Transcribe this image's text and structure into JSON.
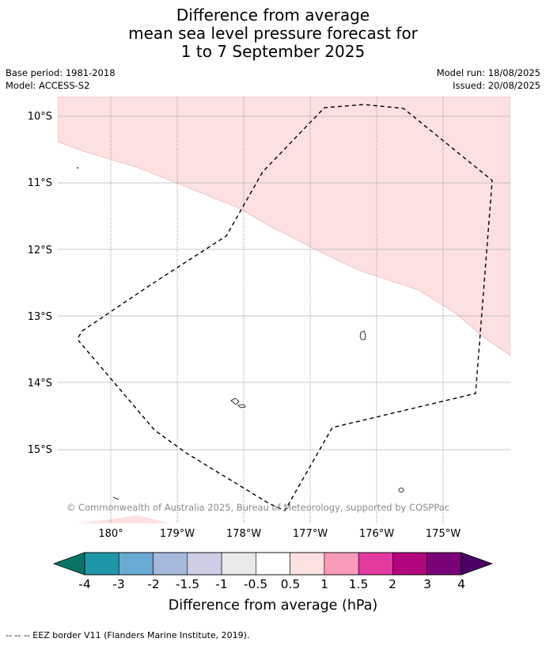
{
  "title": {
    "line1": "Difference from average",
    "line2": "mean sea level pressure forecast for",
    "line3": "1 to 7 September 2025"
  },
  "meta": {
    "base_period": "Base period: 1981-2018",
    "model": "Model: ACCESS-S2",
    "model_run": "Model run: 18/08/2025",
    "issued": "Issued: 20/08/2025"
  },
  "map": {
    "lat_labels": [
      "10°S",
      "11°S",
      "12°S",
      "13°S",
      "14°S",
      "15°S"
    ],
    "lon_labels": [
      "180°",
      "179°W",
      "178°W",
      "177°W",
      "176°W",
      "175°W"
    ],
    "copyright": "© Commonwealth of Australia 2025, Bureau of Meteorology, supported by COSPPac",
    "anomaly_colour": "#fde0e0"
  },
  "legend": {
    "title": "Difference from average (hPa)",
    "tick_labels": [
      "-4",
      "-3",
      "-2",
      "-1.5",
      "-1",
      "-0.5",
      "0.5",
      "1",
      "1.5",
      "2",
      "3",
      "4"
    ],
    "colors": [
      "#0b7466",
      "#1e97a8",
      "#68aad2",
      "#a6b8dc",
      "#cdcee6",
      "#e9e9ec",
      "#ffffff",
      "#fde0e0",
      "#f89bb9",
      "#e33aa0",
      "#b3057e",
      "#7a0177",
      "#4a0065"
    ]
  },
  "footer": "--  --  -- EEZ border V11 (Flanders Marine Institute, 2019)."
}
